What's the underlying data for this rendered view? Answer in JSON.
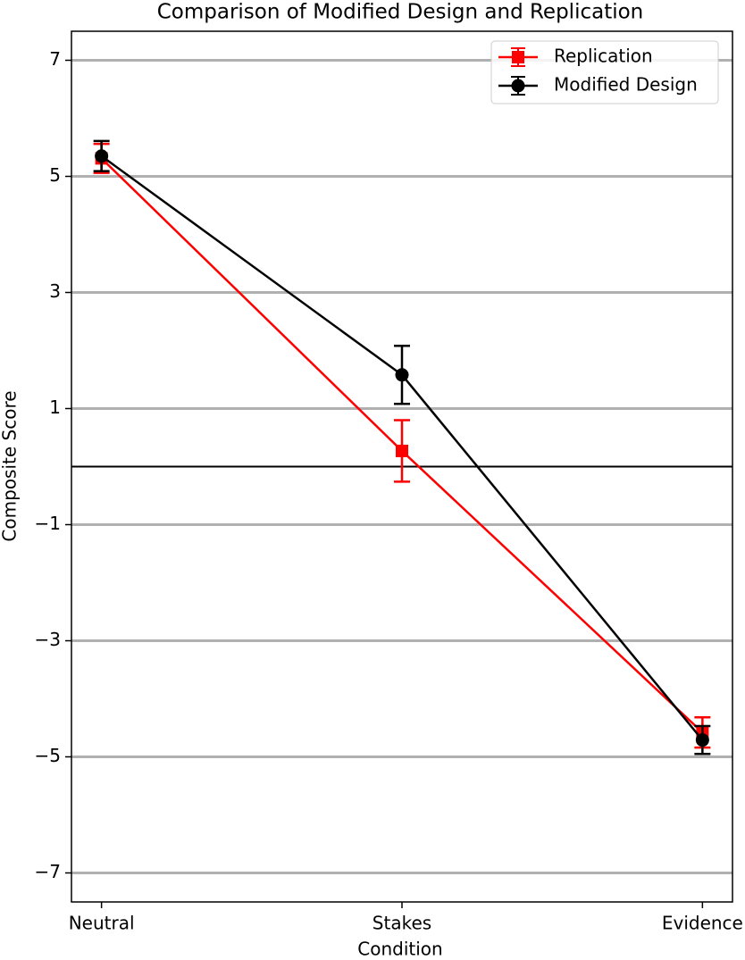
{
  "chart_data": {
    "type": "line",
    "title": "Comparison of Modified Design and Replication",
    "x_label": "Condition",
    "y_label": "Composite Score",
    "categories": [
      "Neutral",
      "Stakes",
      "Evidence"
    ],
    "series": [
      {
        "name": "Replication",
        "color": "#ff0000",
        "marker": "square",
        "values": [
          5.31,
          0.27,
          -4.58
        ],
        "errors": [
          0.25,
          0.53,
          0.26
        ]
      },
      {
        "name": "Modified Design",
        "color": "#000000",
        "marker": "circle",
        "values": [
          5.35,
          1.58,
          -4.71
        ],
        "errors": [
          0.26,
          0.5,
          0.24
        ]
      }
    ],
    "ylim": [
      -7.5,
      7.5
    ],
    "yticks": [
      {
        "value": -7,
        "label": "−7"
      },
      {
        "value": -5,
        "label": "−5"
      },
      {
        "value": -3,
        "label": "−3"
      },
      {
        "value": -1,
        "label": "−1"
      },
      1,
      3,
      5,
      7
    ],
    "reference_line": 0,
    "grid": true,
    "legend": "upper right"
  }
}
